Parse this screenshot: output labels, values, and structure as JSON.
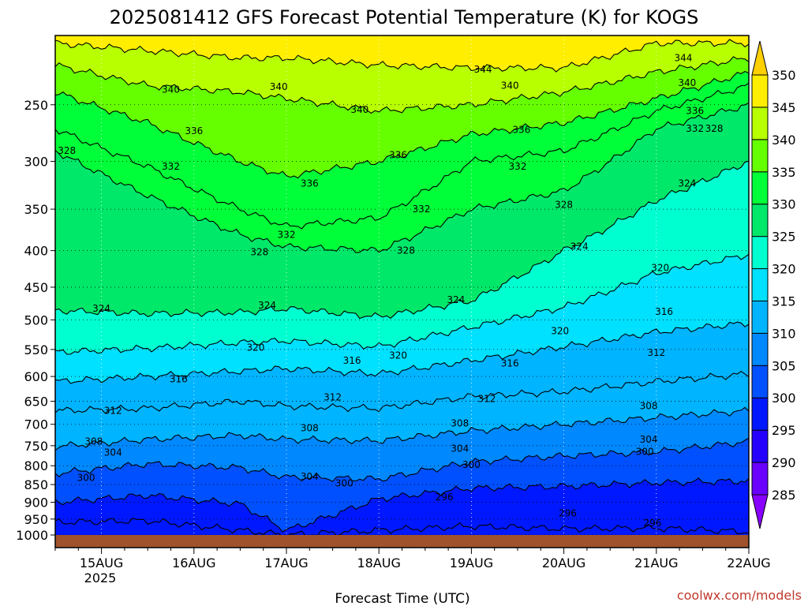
{
  "chart_data": {
    "type": "heatmap",
    "title": "2025081412 GFS Forecast Potential Temperature (K) for KOGS",
    "xlabel": "Forecast Time (UTC)",
    "ylabel": "",
    "credit": "coolwx.com/models",
    "x_ticks": [
      "15AUG",
      "16AUG",
      "17AUG",
      "18AUG",
      "19AUG",
      "20AUG",
      "21AUG",
      "22AUG"
    ],
    "x_year_label": "2025",
    "x_tick_values": [
      24,
      48,
      72,
      96,
      120,
      144,
      168,
      192
    ],
    "xlim": [
      12,
      192
    ],
    "y_scale": "log",
    "y_ticks": [
      250,
      300,
      350,
      400,
      450,
      500,
      550,
      600,
      650,
      700,
      750,
      800,
      850,
      900,
      950,
      1000
    ],
    "ylim": [
      1000,
      200
    ],
    "colorbar": {
      "levels": [
        285,
        290,
        295,
        300,
        305,
        310,
        315,
        320,
        325,
        330,
        335,
        340,
        345,
        350
      ],
      "labels": [
        "285",
        "290",
        "295",
        "300",
        "305",
        "310",
        "315",
        "320",
        "325",
        "330",
        "335",
        "340",
        "345",
        "350"
      ],
      "colors": [
        "#8800ff",
        "#6a00ff",
        "#2600ff",
        "#0018ff",
        "#0050ff",
        "#0088ff",
        "#00b4ff",
        "#00e0ff",
        "#00ffd0",
        "#00e86a",
        "#00ff38",
        "#66ff00",
        "#b8ff00",
        "#ffee00",
        "#ffd000"
      ]
    },
    "series": [
      {
        "name": "296",
        "values": [
          [
            12,
            960
          ],
          [
            36,
            955
          ],
          [
            72,
            1000
          ],
          [
            96,
            985
          ],
          [
            120,
            972
          ],
          [
            144,
            980
          ],
          [
            168,
            978
          ],
          [
            192,
            990
          ]
        ]
      },
      {
        "name": "300",
        "values": [
          [
            12,
            900
          ],
          [
            36,
            880
          ],
          [
            60,
            905
          ],
          [
            72,
            985
          ],
          [
            96,
            890
          ],
          [
            120,
            860
          ],
          [
            144,
            855
          ],
          [
            168,
            845
          ],
          [
            192,
            840
          ]
        ]
      },
      {
        "name": "304",
        "values": [
          [
            12,
            820
          ],
          [
            36,
            795
          ],
          [
            60,
            805
          ],
          [
            72,
            830
          ],
          [
            96,
            835
          ],
          [
            120,
            790
          ],
          [
            144,
            775
          ],
          [
            168,
            765
          ],
          [
            192,
            740
          ]
        ]
      },
      {
        "name": "308",
        "values": [
          [
            12,
            752
          ],
          [
            36,
            735
          ],
          [
            60,
            725
          ],
          [
            72,
            735
          ],
          [
            96,
            738
          ],
          [
            120,
            715
          ],
          [
            144,
            700
          ],
          [
            168,
            685
          ],
          [
            192,
            670
          ]
        ]
      },
      {
        "name": "312",
        "values": [
          [
            12,
            670
          ],
          [
            36,
            665
          ],
          [
            60,
            650
          ],
          [
            72,
            660
          ],
          [
            96,
            665
          ],
          [
            120,
            640
          ],
          [
            144,
            630
          ],
          [
            168,
            610
          ],
          [
            192,
            595
          ]
        ]
      },
      {
        "name": "316",
        "values": [
          [
            12,
            610
          ],
          [
            36,
            600
          ],
          [
            60,
            590
          ],
          [
            72,
            585
          ],
          [
            96,
            595
          ],
          [
            120,
            570
          ],
          [
            144,
            545
          ],
          [
            168,
            520
          ],
          [
            192,
            505
          ]
        ]
      },
      {
        "name": "320",
        "values": [
          [
            12,
            555
          ],
          [
            36,
            548
          ],
          [
            60,
            538
          ],
          [
            72,
            535
          ],
          [
            96,
            545
          ],
          [
            120,
            512
          ],
          [
            144,
            480
          ],
          [
            168,
            430
          ],
          [
            192,
            405
          ]
        ]
      },
      {
        "name": "324",
        "values": [
          [
            12,
            485
          ],
          [
            36,
            490
          ],
          [
            60,
            488
          ],
          [
            72,
            482
          ],
          [
            96,
            495
          ],
          [
            120,
            470
          ],
          [
            144,
            400
          ],
          [
            168,
            340
          ],
          [
            192,
            300
          ]
        ]
      },
      {
        "name": "328",
        "values": [
          [
            12,
            290
          ],
          [
            36,
            335
          ],
          [
            60,
            380
          ],
          [
            72,
            395
          ],
          [
            96,
            400
          ],
          [
            120,
            350
          ],
          [
            144,
            330
          ],
          [
            168,
            270
          ],
          [
            192,
            250
          ]
        ]
      },
      {
        "name": "332",
        "values": [
          [
            12,
            270
          ],
          [
            36,
            305
          ],
          [
            60,
            350
          ],
          [
            72,
            370
          ],
          [
            96,
            360
          ],
          [
            120,
            300
          ],
          [
            144,
            290
          ],
          [
            168,
            255
          ],
          [
            192,
            235
          ]
        ]
      },
      {
        "name": "336",
        "values": [
          [
            12,
            240
          ],
          [
            36,
            265
          ],
          [
            60,
            300
          ],
          [
            72,
            315
          ],
          [
            96,
            300
          ],
          [
            120,
            275
          ],
          [
            144,
            265
          ],
          [
            168,
            245
          ],
          [
            192,
            225
          ]
        ]
      },
      {
        "name": "340",
        "values": [
          [
            12,
            220
          ],
          [
            36,
            235
          ],
          [
            60,
            240
          ],
          [
            72,
            245
          ],
          [
            96,
            255
          ],
          [
            120,
            250
          ],
          [
            144,
            240
          ],
          [
            168,
            225
          ],
          [
            192,
            215
          ]
        ]
      },
      {
        "name": "344",
        "values": [
          [
            12,
            205
          ],
          [
            36,
            210
          ],
          [
            60,
            215
          ],
          [
            72,
            215
          ],
          [
            96,
            220
          ],
          [
            120,
            222
          ],
          [
            144,
            222
          ],
          [
            168,
            205
          ],
          [
            192,
            205
          ]
        ]
      }
    ],
    "contour_labels": [
      {
        "text": "340",
        "x": 42,
        "p": 238
      },
      {
        "text": "340",
        "x": 70,
        "p": 236
      },
      {
        "text": "340",
        "x": 91,
        "p": 254
      },
      {
        "text": "344",
        "x": 123,
        "p": 223
      },
      {
        "text": "340",
        "x": 130,
        "p": 235
      },
      {
        "text": "344",
        "x": 175,
        "p": 215
      },
      {
        "text": "340",
        "x": 176,
        "p": 233
      },
      {
        "text": "336",
        "x": 178,
        "p": 255
      },
      {
        "text": "332",
        "x": 178,
        "p": 270
      },
      {
        "text": "328",
        "x": 183,
        "p": 270
      },
      {
        "text": "336",
        "x": 48,
        "p": 272
      },
      {
        "text": "336",
        "x": 78,
        "p": 322
      },
      {
        "text": "336",
        "x": 101,
        "p": 294
      },
      {
        "text": "336",
        "x": 133,
        "p": 271
      },
      {
        "text": "328",
        "x": 15,
        "p": 290
      },
      {
        "text": "332",
        "x": 42,
        "p": 305
      },
      {
        "text": "332",
        "x": 72,
        "p": 380
      },
      {
        "text": "332",
        "x": 107,
        "p": 350
      },
      {
        "text": "332",
        "x": 132,
        "p": 305
      },
      {
        "text": "328",
        "x": 144,
        "p": 345
      },
      {
        "text": "324",
        "x": 176,
        "p": 322
      },
      {
        "text": "328",
        "x": 65,
        "p": 402
      },
      {
        "text": "328",
        "x": 103,
        "p": 400
      },
      {
        "text": "324",
        "x": 148,
        "p": 395
      },
      {
        "text": "320",
        "x": 169,
        "p": 423
      },
      {
        "text": "324",
        "x": 24,
        "p": 482
      },
      {
        "text": "324",
        "x": 67,
        "p": 477
      },
      {
        "text": "324",
        "x": 116,
        "p": 469
      },
      {
        "text": "316",
        "x": 170,
        "p": 487
      },
      {
        "text": "320",
        "x": 64,
        "p": 547
      },
      {
        "text": "320",
        "x": 101,
        "p": 561
      },
      {
        "text": "320",
        "x": 143,
        "p": 518
      },
      {
        "text": "316",
        "x": 44,
        "p": 605
      },
      {
        "text": "316",
        "x": 89,
        "p": 570
      },
      {
        "text": "316",
        "x": 130,
        "p": 575
      },
      {
        "text": "312",
        "x": 168,
        "p": 556
      },
      {
        "text": "312",
        "x": 27,
        "p": 670
      },
      {
        "text": "312",
        "x": 84,
        "p": 642
      },
      {
        "text": "312",
        "x": 124,
        "p": 645
      },
      {
        "text": "308",
        "x": 166,
        "p": 660
      },
      {
        "text": "308",
        "x": 22,
        "p": 740
      },
      {
        "text": "308",
        "x": 78,
        "p": 709
      },
      {
        "text": "308",
        "x": 117,
        "p": 698
      },
      {
        "text": "304",
        "x": 166,
        "p": 735
      },
      {
        "text": "304",
        "x": 27,
        "p": 767
      },
      {
        "text": "304",
        "x": 117,
        "p": 757
      },
      {
        "text": "300",
        "x": 165,
        "p": 765
      },
      {
        "text": "300",
        "x": 20,
        "p": 832
      },
      {
        "text": "304",
        "x": 78,
        "p": 829
      },
      {
        "text": "300",
        "x": 87,
        "p": 847
      },
      {
        "text": "300",
        "x": 120,
        "p": 797
      },
      {
        "text": "296",
        "x": 113,
        "p": 885
      },
      {
        "text": "296",
        "x": 145,
        "p": 933
      },
      {
        "text": "296",
        "x": 167,
        "p": 963
      }
    ]
  }
}
